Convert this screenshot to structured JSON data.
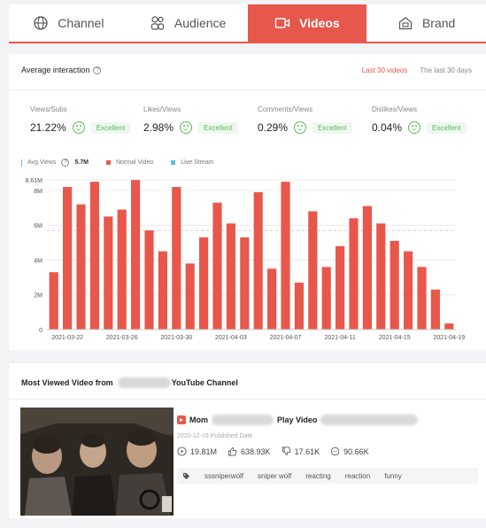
{
  "tabs": [
    {
      "label": "Channel",
      "icon": "globe-icon",
      "active": false
    },
    {
      "label": "Audience",
      "icon": "audience-icon",
      "active": false
    },
    {
      "label": "Videos",
      "icon": "video-camera-icon",
      "active": true
    },
    {
      "label": "Brand",
      "icon": "brand-icon",
      "active": false
    }
  ],
  "interaction": {
    "title": "Average interaction",
    "help": "?",
    "period_selected": "Last 30 videos",
    "period_other": "The last 30 days",
    "metrics": [
      {
        "label": "Views/Subs",
        "value": "21.22%",
        "rating": "Excellent"
      },
      {
        "label": "Likes/Views",
        "value": "2.98%",
        "rating": "Excellent"
      },
      {
        "label": "Comments/Views",
        "value": "0.29%",
        "rating": "Excellent"
      },
      {
        "label": "Dislikes/Views",
        "value": "0.04%",
        "rating": "Excellent"
      }
    ],
    "legend": {
      "avg_label": "Avg.Views",
      "avg_value": "5.7M",
      "normal": "Normal Video",
      "live": "Live Stream"
    }
  },
  "colors": {
    "accent": "#e8574b",
    "good": "#5cb85c",
    "live": "#5bc0de",
    "bar": "#e8574b"
  },
  "chart_data": {
    "type": "bar",
    "series": [
      {
        "name": "Normal Video",
        "values": [
          3.3,
          8.2,
          7.2,
          8.5,
          6.5,
          6.9,
          8.6,
          5.7,
          4.5,
          8.2,
          3.8,
          5.3,
          7.3,
          6.1,
          5.3,
          7.9,
          3.5,
          8.5,
          2.7,
          6.8,
          3.6,
          4.8,
          6.4,
          7.1,
          6.1,
          5.1,
          4.5,
          3.6,
          2.3,
          0.35
        ]
      }
    ],
    "avg_line": 5.7,
    "y_ticks": [
      "0",
      "2M",
      "4M",
      "6M",
      "8M"
    ],
    "y_tick_values": [
      0,
      2,
      4,
      6,
      8
    ],
    "y_max_label": "8.61M",
    "ylim": [
      0,
      8.61
    ],
    "x_ticks": [
      {
        "index": 1,
        "label": "2021-03-22"
      },
      {
        "index": 5,
        "label": "2021-03-26"
      },
      {
        "index": 9,
        "label": "2021-03-30"
      },
      {
        "index": 13,
        "label": "2021-04-03"
      },
      {
        "index": 17,
        "label": "2021-04-07"
      },
      {
        "index": 21,
        "label": "2021-04-11"
      },
      {
        "index": 25,
        "label": "2021-04-15"
      },
      {
        "index": 29,
        "label": "2021-04-19"
      }
    ],
    "grid": true
  },
  "most_viewed": {
    "title_prefix": "Most Viewed Video from",
    "title_suffix": "YouTube Channel",
    "video_title_start": "Mom",
    "video_title_mid": "Play Video",
    "published": "2020-12-19 Published Date",
    "views": "19.81M",
    "likes": "638.93K",
    "dislikes": "17.61K",
    "comments": "90.66K",
    "tags": [
      "sssniperwolf",
      "sniper wolf",
      "reacting",
      "reaction",
      "funny"
    ]
  }
}
